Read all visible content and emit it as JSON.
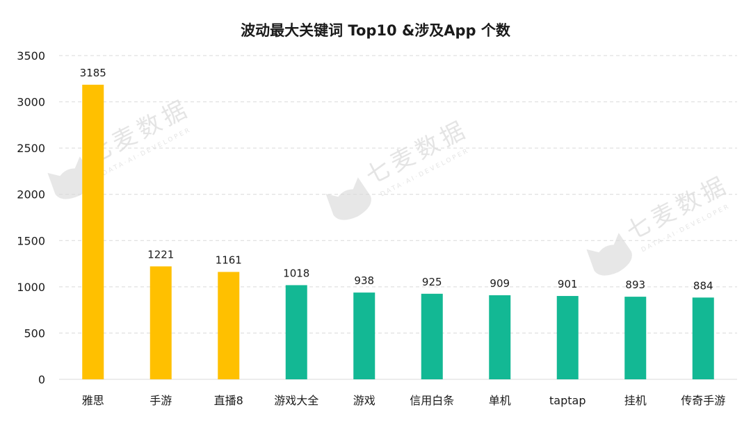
{
  "chart_data": {
    "type": "bar",
    "title": "波动最大关键词 Top10 &涉及App 个数",
    "xlabel": "",
    "ylabel": "",
    "categories": [
      "雅思",
      "手游",
      "直播8",
      "游戏大全",
      "游戏",
      "信用白条",
      "单机",
      "taptap",
      "挂机",
      "传奇手游"
    ],
    "values": [
      3185,
      1221,
      1161,
      1018,
      938,
      925,
      909,
      901,
      893,
      884
    ],
    "ylim": [
      0,
      3500
    ],
    "yticks": [
      0,
      500,
      1000,
      1500,
      2000,
      2500,
      3000,
      3500
    ],
    "grid": true,
    "legend": "none",
    "colors": {
      "highlight": "#FFC000",
      "default": "#13B894",
      "grid": "#D9D9D9",
      "axis": "#D9D9D9",
      "text": "#1a1a1a"
    },
    "highlight_count": 3
  },
  "watermark": {
    "brand": "七麦数据",
    "tagline": "DATA·AI·DEVELOPER"
  }
}
